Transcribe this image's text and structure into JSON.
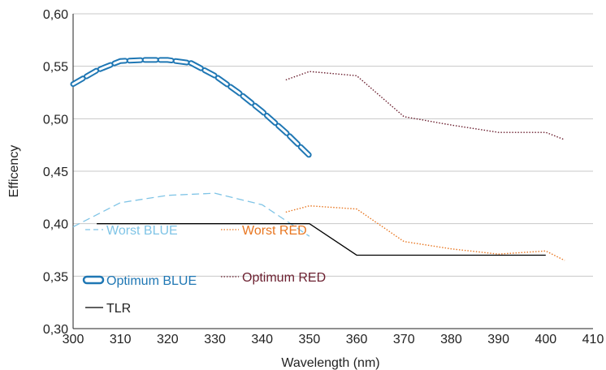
{
  "chart_data": {
    "type": "line",
    "title": "",
    "xlabel": "Wavelength (nm)",
    "ylabel": "Efficency",
    "xlim": [
      300,
      410
    ],
    "ylim": [
      0.3,
      0.6
    ],
    "x_ticks": [
      300,
      310,
      320,
      330,
      340,
      350,
      360,
      370,
      380,
      390,
      400,
      410
    ],
    "y_ticks": [
      "0,30",
      "0,35",
      "0,40",
      "0,45",
      "0,50",
      "0,55",
      "0,60"
    ],
    "grid": "horizontal",
    "legend_position": "lower-left",
    "series": [
      {
        "name": "Worst BLUE",
        "color": "#7fc4e6",
        "style": "dashed",
        "x": [
          300,
          310,
          320,
          330,
          340,
          350
        ],
        "y": [
          0.397,
          0.42,
          0.427,
          0.429,
          0.418,
          0.388
        ]
      },
      {
        "name": "Optimum BLUE",
        "color": "#1f77b4",
        "style": "outlined-dash",
        "x": [
          300,
          305,
          310,
          315,
          320,
          325,
          330,
          335,
          340,
          345,
          350
        ],
        "y": [
          0.533,
          0.546,
          0.555,
          0.556,
          0.556,
          0.553,
          0.541,
          0.525,
          0.507,
          0.487,
          0.465
        ]
      },
      {
        "name": "Worst RED",
        "color": "#e87722",
        "style": "dotted",
        "x": [
          345,
          350,
          360,
          370,
          380,
          390,
          400,
          404
        ],
        "y": [
          0.411,
          0.417,
          0.414,
          0.383,
          0.376,
          0.371,
          0.374,
          0.365
        ]
      },
      {
        "name": "Optimum RED",
        "color": "#6b1f2f",
        "style": "dotted",
        "x": [
          345,
          350,
          360,
          370,
          380,
          390,
          400,
          404
        ],
        "y": [
          0.537,
          0.545,
          0.541,
          0.502,
          0.494,
          0.487,
          0.487,
          0.48
        ]
      },
      {
        "name": "TLR",
        "color": "#000000",
        "style": "solid",
        "x": [
          305,
          350,
          360,
          400
        ],
        "y": [
          0.4,
          0.4,
          0.37,
          0.37
        ]
      }
    ]
  }
}
